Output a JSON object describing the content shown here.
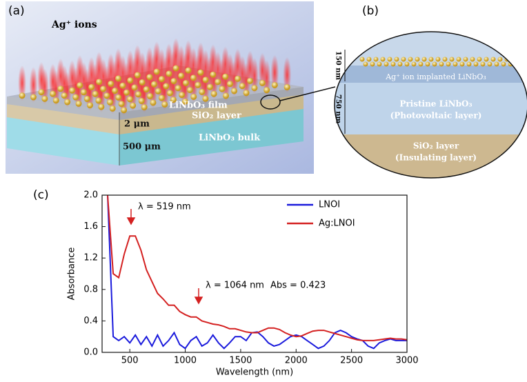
{
  "panel_a": {
    "label": "(a)",
    "ions": "Ag⁺ ions",
    "film": "LiNbO₃ film",
    "sio2": "SiO₂ layer",
    "sio2_thickness": "2 μm",
    "bulk_thickness": "500 μm",
    "bulk": "LiNbO₃ bulk"
  },
  "panel_b": {
    "label": "(b)",
    "top_thickness": "150 nm",
    "mid_thickness": "750 nm",
    "implanted": "Ag⁺ ion implanted LiNbO₃",
    "pristine": "Pristine LiNbO₃",
    "pristine_role": "(Photovoltaic layer)",
    "sio2": "SiO₂ layer",
    "sio2_role": "(Insulating layer)"
  },
  "chart_data": {
    "type": "line",
    "panel_label": "(c)",
    "x_label": "Wavelength (nm)",
    "y_label": "Absorbance",
    "annotations": [
      "λ = 519 nm",
      "λ = 1064 nm",
      "Abs = 0.423"
    ],
    "xlim": [
      250,
      3000
    ],
    "xticks": [
      500,
      1000,
      1500,
      2000,
      2500,
      3000
    ],
    "ylim": [
      0,
      2
    ],
    "yticks": [
      {
        "value": 0,
        "label": "0.0"
      },
      0.4,
      0.8,
      1.2,
      1.6,
      {
        "value": 2,
        "label": "2.0"
      }
    ],
    "x": [
      300,
      350,
      400,
      450,
      500,
      550,
      600,
      650,
      700,
      750,
      800,
      850,
      900,
      950,
      1000,
      1050,
      1100,
      1150,
      1200,
      1250,
      1300,
      1350,
      1400,
      1450,
      1500,
      1550,
      1600,
      1650,
      1700,
      1750,
      1800,
      1850,
      1900,
      1950,
      2000,
      2050,
      2100,
      2150,
      2200,
      2250,
      2300,
      2350,
      2400,
      2450,
      2500,
      2550,
      2600,
      2650,
      2700,
      2750,
      2800,
      2850,
      2900,
      2950,
      3000
    ],
    "series": [
      {
        "name": "LNOI",
        "color": "#1a1adc",
        "values": [
          2.0,
          0.2,
          0.15,
          0.2,
          0.12,
          0.22,
          0.1,
          0.2,
          0.08,
          0.22,
          0.08,
          0.15,
          0.25,
          0.1,
          0.05,
          0.15,
          0.2,
          0.08,
          0.12,
          0.22,
          0.12,
          0.05,
          0.12,
          0.2,
          0.2,
          0.15,
          0.25,
          0.26,
          0.2,
          0.12,
          0.08,
          0.1,
          0.15,
          0.2,
          0.22,
          0.2,
          0.15,
          0.1,
          0.05,
          0.08,
          0.15,
          0.25,
          0.28,
          0.25,
          0.2,
          0.17,
          0.15,
          0.08,
          0.05,
          0.12,
          0.15,
          0.17,
          0.15,
          0.15,
          0.15
        ]
      },
      {
        "name": "Ag:LNOI",
        "color": "#d42020",
        "values": [
          2.0,
          1.0,
          0.95,
          1.25,
          1.48,
          1.48,
          1.3,
          1.05,
          0.9,
          0.75,
          0.68,
          0.6,
          0.6,
          0.52,
          0.48,
          0.45,
          0.45,
          0.4,
          0.38,
          0.36,
          0.35,
          0.33,
          0.3,
          0.3,
          0.28,
          0.26,
          0.25,
          0.25,
          0.28,
          0.31,
          0.31,
          0.29,
          0.25,
          0.22,
          0.2,
          0.21,
          0.24,
          0.27,
          0.28,
          0.28,
          0.26,
          0.24,
          0.22,
          0.2,
          0.18,
          0.16,
          0.15,
          0.15,
          0.15,
          0.16,
          0.17,
          0.18,
          0.17,
          0.17,
          0.16
        ]
      }
    ]
  }
}
